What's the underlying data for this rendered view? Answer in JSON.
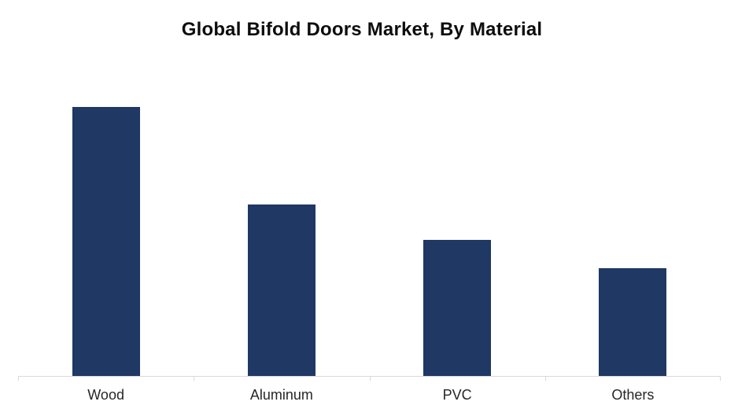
{
  "chart_data": {
    "type": "bar",
    "title": "Global Bifold Doors Market, By Material",
    "categories": [
      "Wood",
      "Aluminum",
      "PVC",
      "Others"
    ],
    "values": [
      40.0,
      25.5,
      20.2,
      16.0
    ],
    "xlabel": "",
    "ylabel": "",
    "ylim": [
      0,
      46
    ],
    "grid": false,
    "legend": false,
    "value_axis_visible": false,
    "bar_color": "#1f3864",
    "axis_color": "#d9d9d9",
    "title_color": "#0d0d0d",
    "label_color": "#262626",
    "background_color": "#ffffff"
  }
}
